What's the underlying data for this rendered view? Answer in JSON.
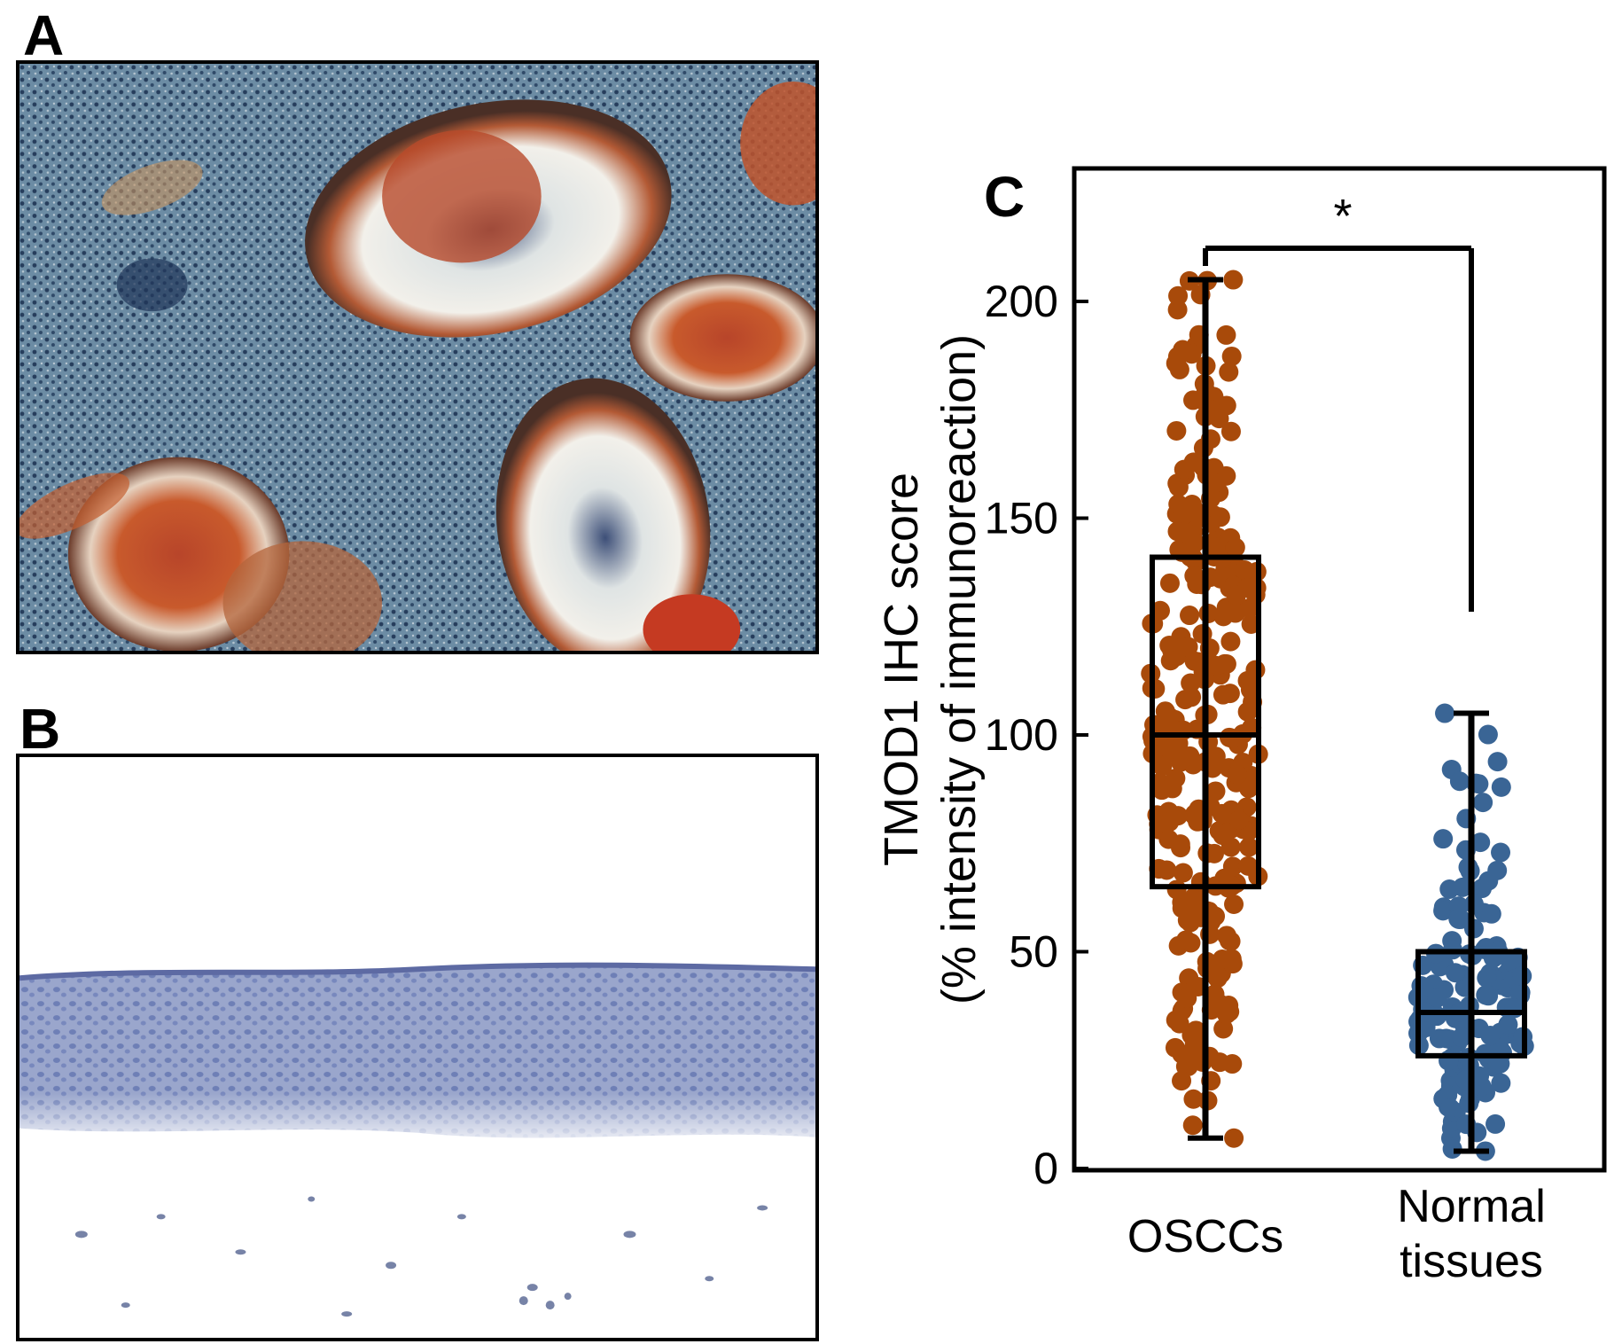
{
  "panels": {
    "a": {
      "letter": "A"
    },
    "b": {
      "letter": "B"
    },
    "c": {
      "letter": "C"
    }
  },
  "chart_data": {
    "type": "box",
    "ylabel_line1": "TMOD1  IHC score",
    "ylabel_line2": "(% intensity of immunoreaction)",
    "categories": [
      "OSCCs",
      "Normal tissues"
    ],
    "category_label_lines": [
      [
        "OSCCs"
      ],
      [
        "Normal",
        "tissues"
      ]
    ],
    "ylim": [
      0,
      230
    ],
    "yticks": [
      0,
      50,
      100,
      150,
      200
    ],
    "grid": false,
    "significance": {
      "label": "*",
      "between": [
        "OSCCs",
        "Normal tissues"
      ]
    },
    "series": [
      {
        "name": "OSCCs",
        "color": "#a84a0a",
        "whisker_low": 7,
        "q1": 65,
        "median": 100,
        "q3": 141,
        "whisker_high": 205,
        "n_points_approx": 300
      },
      {
        "name": "Normal tissues",
        "color": "#3a6595",
        "whisker_low": 4,
        "q1": 26,
        "median": 36,
        "q3": 50,
        "whisker_high": 105,
        "n_points_approx": 150
      }
    ]
  }
}
